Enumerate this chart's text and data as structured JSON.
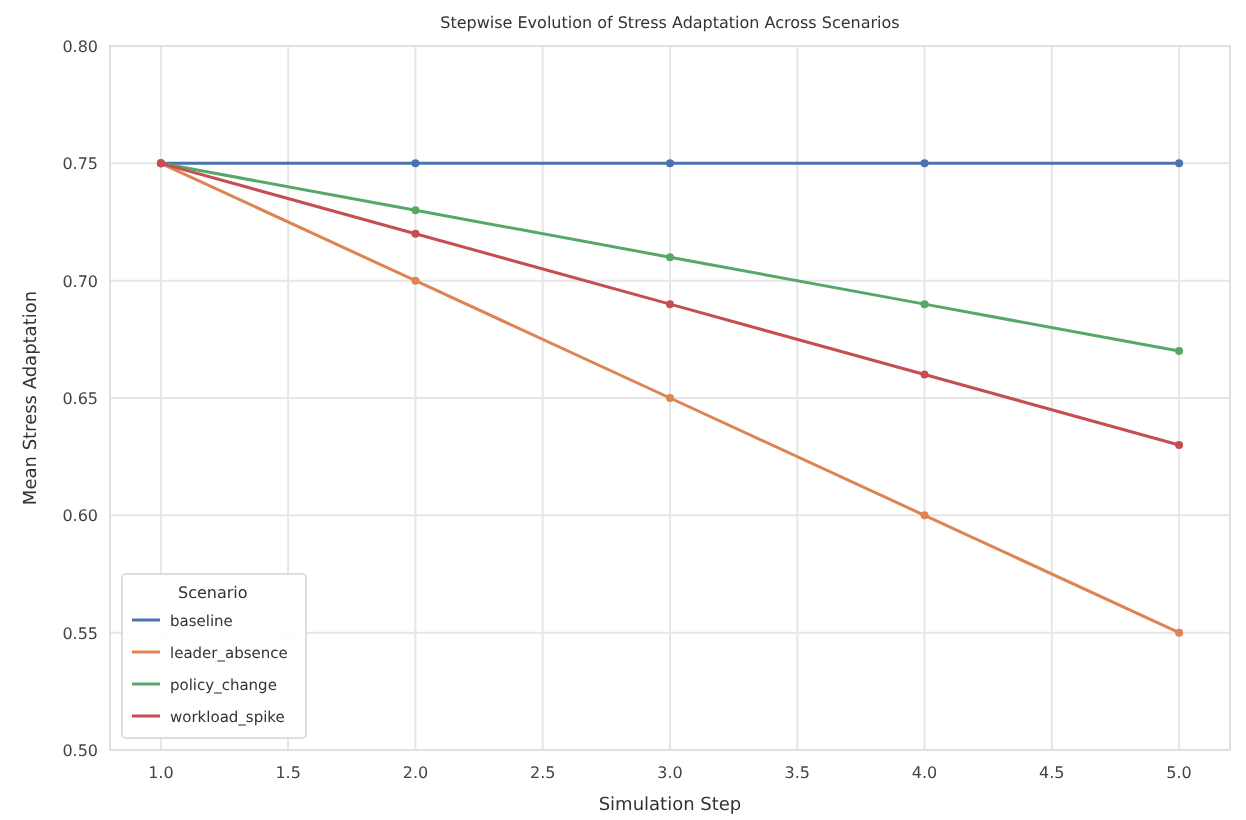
{
  "chart_data": {
    "type": "line",
    "title": "Stepwise Evolution of Stress Adaptation Across Scenarios",
    "xlabel": "Simulation Step",
    "ylabel": "Mean Stress Adaptation",
    "legend_title": "Scenario",
    "x": [
      1,
      2,
      3,
      4,
      5
    ],
    "series": [
      {
        "name": "baseline",
        "color": "#4c72b0",
        "values": [
          0.75,
          0.75,
          0.75,
          0.75,
          0.75
        ]
      },
      {
        "name": "leader_absence",
        "color": "#dd8452",
        "values": [
          0.75,
          0.7,
          0.65,
          0.6,
          0.55
        ]
      },
      {
        "name": "policy_change",
        "color": "#55a868",
        "values": [
          0.75,
          0.73,
          0.71,
          0.69,
          0.67
        ]
      },
      {
        "name": "workload_spike",
        "color": "#c44e52",
        "values": [
          0.75,
          0.72,
          0.69,
          0.66,
          0.63
        ]
      }
    ],
    "xlim": [
      0.8,
      5.2
    ],
    "xticks": [
      {
        "value": 1,
        "label": "1.0"
      },
      {
        "value": 1.5,
        "label": "1.5"
      },
      {
        "value": 2,
        "label": "2.0"
      },
      {
        "value": 2.5,
        "label": "2.5"
      },
      {
        "value": 3,
        "label": "3.0"
      },
      {
        "value": 3.5,
        "label": "3.5"
      },
      {
        "value": 4,
        "label": "4.0"
      },
      {
        "value": 4.5,
        "label": "4.5"
      },
      {
        "value": 5,
        "label": "5.0"
      }
    ],
    "ylim": [
      0.5,
      0.8
    ],
    "yticks": [
      {
        "value": 0.5,
        "label": "0.50"
      },
      {
        "value": 0.55,
        "label": "0.55"
      },
      {
        "value": 0.6,
        "label": "0.60"
      },
      {
        "value": 0.65,
        "label": "0.65"
      },
      {
        "value": 0.7,
        "label": "0.70"
      },
      {
        "value": 0.75,
        "label": "0.75"
      },
      {
        "value": 0.8,
        "label": "0.80"
      }
    ],
    "grid": true,
    "legend": "bottom left",
    "marker": "circle",
    "line_style": "solid"
  }
}
